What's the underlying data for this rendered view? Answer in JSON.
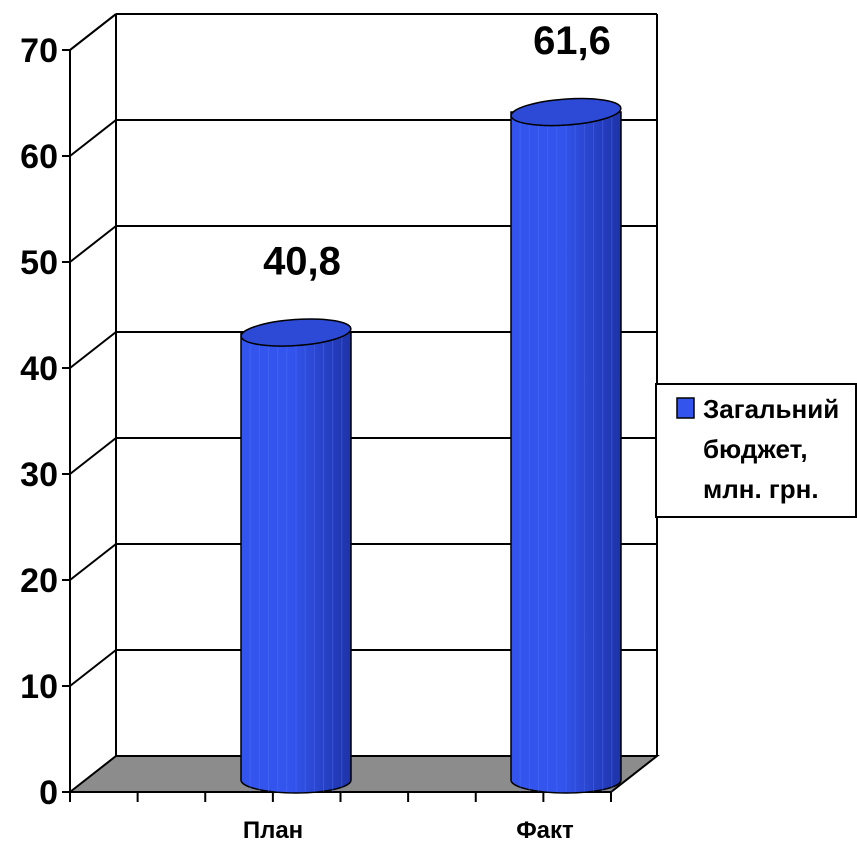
{
  "chart_data": {
    "type": "bar",
    "style": "3d-cylinder",
    "categories": [
      "План",
      "Факт"
    ],
    "series": [
      {
        "name": "Загальний бюджет, млн. грн.",
        "values": [
          40.8,
          61.6
        ]
      }
    ],
    "data_labels": [
      "40,8",
      "61,6"
    ],
    "y_ticks": [
      "0",
      "10",
      "20",
      "30",
      "40",
      "50",
      "60",
      "70"
    ],
    "ylim": [
      0,
      70
    ],
    "grid": true,
    "legend_position": "right",
    "legend_lines": [
      "Загальний",
      "бюджет,",
      "млн. грн."
    ],
    "colors": {
      "bar": "#3355ee",
      "bar_dark": "#1e33a8",
      "bar_top": "#2c4ad6",
      "floor": "#8c8c8c"
    }
  }
}
